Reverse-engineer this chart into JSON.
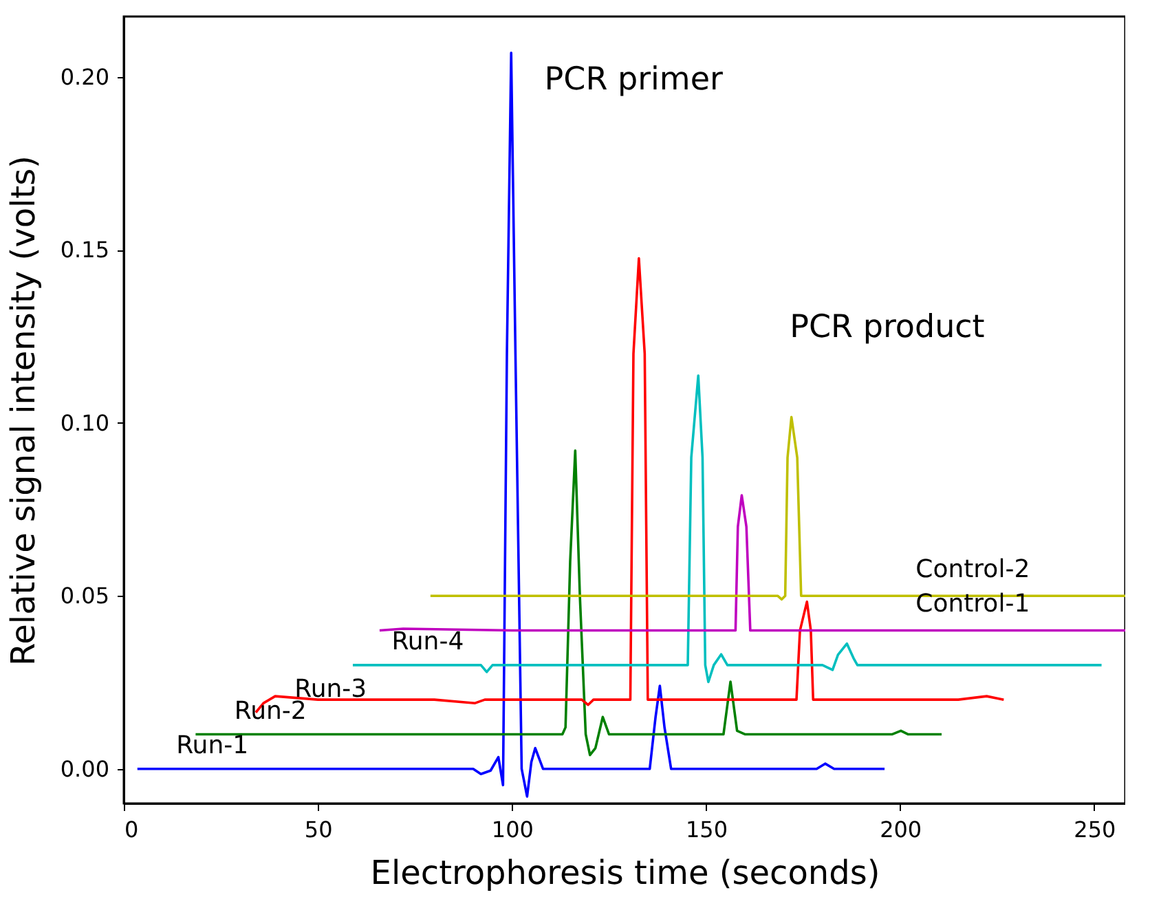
{
  "chart_data": {
    "type": "line",
    "xlabel": "Electrophoresis time (seconds)",
    "ylabel": "Relative signal intensity (volts)",
    "xlim": [
      0,
      258
    ],
    "ylim": [
      -0.01,
      0.2175
    ],
    "xticks": [
      0,
      50,
      100,
      150,
      200,
      250
    ],
    "yticks": [
      {
        "value": 0,
        "label": "0.00"
      },
      {
        "value": 0.05,
        "label": "0.05"
      },
      {
        "value": 0.1,
        "label": "0.10"
      },
      {
        "value": 0.15,
        "label": "0.15"
      },
      {
        "value": 0.2,
        "label": "0.20"
      }
    ],
    "grid": false,
    "series": [
      {
        "name": "Run-1",
        "color": "#0000ff",
        "x": [
          3.5,
          30,
          60,
          90,
          92,
          94.5,
          96.5,
          97.7,
          98.7,
          99.8,
          100.9,
          102.5,
          103.9,
          105,
          106,
          108,
          110,
          130,
          135.5,
          137,
          138.1,
          139.3,
          141,
          160,
          178.5,
          180.7,
          183,
          196
        ],
        "values": [
          0,
          0,
          0,
          0,
          -0.0015,
          -0.0005,
          0.0034,
          -0.0047,
          0.12,
          0.207,
          0.12,
          0,
          -0.008,
          0.002,
          0.006,
          0,
          0,
          0,
          0,
          0.015,
          0.024,
          0.012,
          0,
          0,
          0,
          0.0015,
          0,
          0
        ]
      },
      {
        "name": "Run-2",
        "color": "#008000",
        "x": [
          18.5,
          60,
          100,
          113,
          113.8,
          115,
          116.3,
          117.5,
          119,
          120.1,
          121.5,
          123.4,
          125,
          126.5,
          150,
          154.5,
          156.3,
          158,
          160,
          198,
          200.2,
          202,
          210.7
        ],
        "values": [
          0.01,
          0.01,
          0.01,
          0.01,
          0.012,
          0.06,
          0.092,
          0.05,
          0.01,
          0.004,
          0.006,
          0.015,
          0.01,
          0.01,
          0.01,
          0.01,
          0.0252,
          0.011,
          0.01,
          0.01,
          0.011,
          0.01,
          0.01
        ]
      },
      {
        "name": "Run-3",
        "color": "#ff0000",
        "x": [
          34,
          36,
          39,
          50,
          80,
          90.5,
          93,
          110,
          118,
          119.6,
          121,
          130.5,
          131.3,
          132.7,
          134.2,
          135,
          170,
          173.3,
          174.2,
          176,
          177,
          177.6,
          215,
          222.3,
          226.7
        ],
        "values": [
          0.0163,
          0.019,
          0.021,
          0.02,
          0.02,
          0.019,
          0.02,
          0.02,
          0.02,
          0.0185,
          0.02,
          0.02,
          0.12,
          0.1476,
          0.12,
          0.02,
          0.02,
          0.02,
          0.04,
          0.0483,
          0.04,
          0.02,
          0.02,
          0.021,
          0.02
        ]
      },
      {
        "name": "Run-4",
        "color": "#00bfbf",
        "x": [
          59,
          80,
          92,
          93.5,
          95,
          140,
          145.3,
          146.2,
          148,
          149.1,
          149.8,
          150.6,
          152,
          153.9,
          155.5,
          157,
          180,
          182.6,
          184,
          186.3,
          188,
          189,
          230,
          251.9
        ],
        "values": [
          0.03,
          0.03,
          0.03,
          0.028,
          0.03,
          0.03,
          0.03,
          0.09,
          0.1137,
          0.09,
          0.03,
          0.0251,
          0.03,
          0.0331,
          0.03,
          0.03,
          0.03,
          0.0286,
          0.033,
          0.0362,
          0.032,
          0.03,
          0.03,
          0.03
        ]
      },
      {
        "name": "Control-1",
        "color": "#bf00bf",
        "x": [
          65.9,
          72,
          100,
          157.6,
          158.2,
          159.2,
          160.4,
          161.4,
          200,
          258
        ],
        "values": [
          0.04,
          0.0405,
          0.04,
          0.04,
          0.07,
          0.0791,
          0.07,
          0.04,
          0.04,
          0.04
        ]
      },
      {
        "name": "Control-2",
        "color": "#bfbf00",
        "x": [
          79,
          120,
          168.5,
          169.5,
          170.4,
          171,
          172,
          173.5,
          174.5,
          220,
          258
        ],
        "values": [
          0.05,
          0.05,
          0.05,
          0.049,
          0.05,
          0.09,
          0.1017,
          0.09,
          0.05,
          0.05,
          0.05
        ]
      }
    ],
    "annotations": [
      "PCR primer",
      "PCR product"
    ]
  }
}
